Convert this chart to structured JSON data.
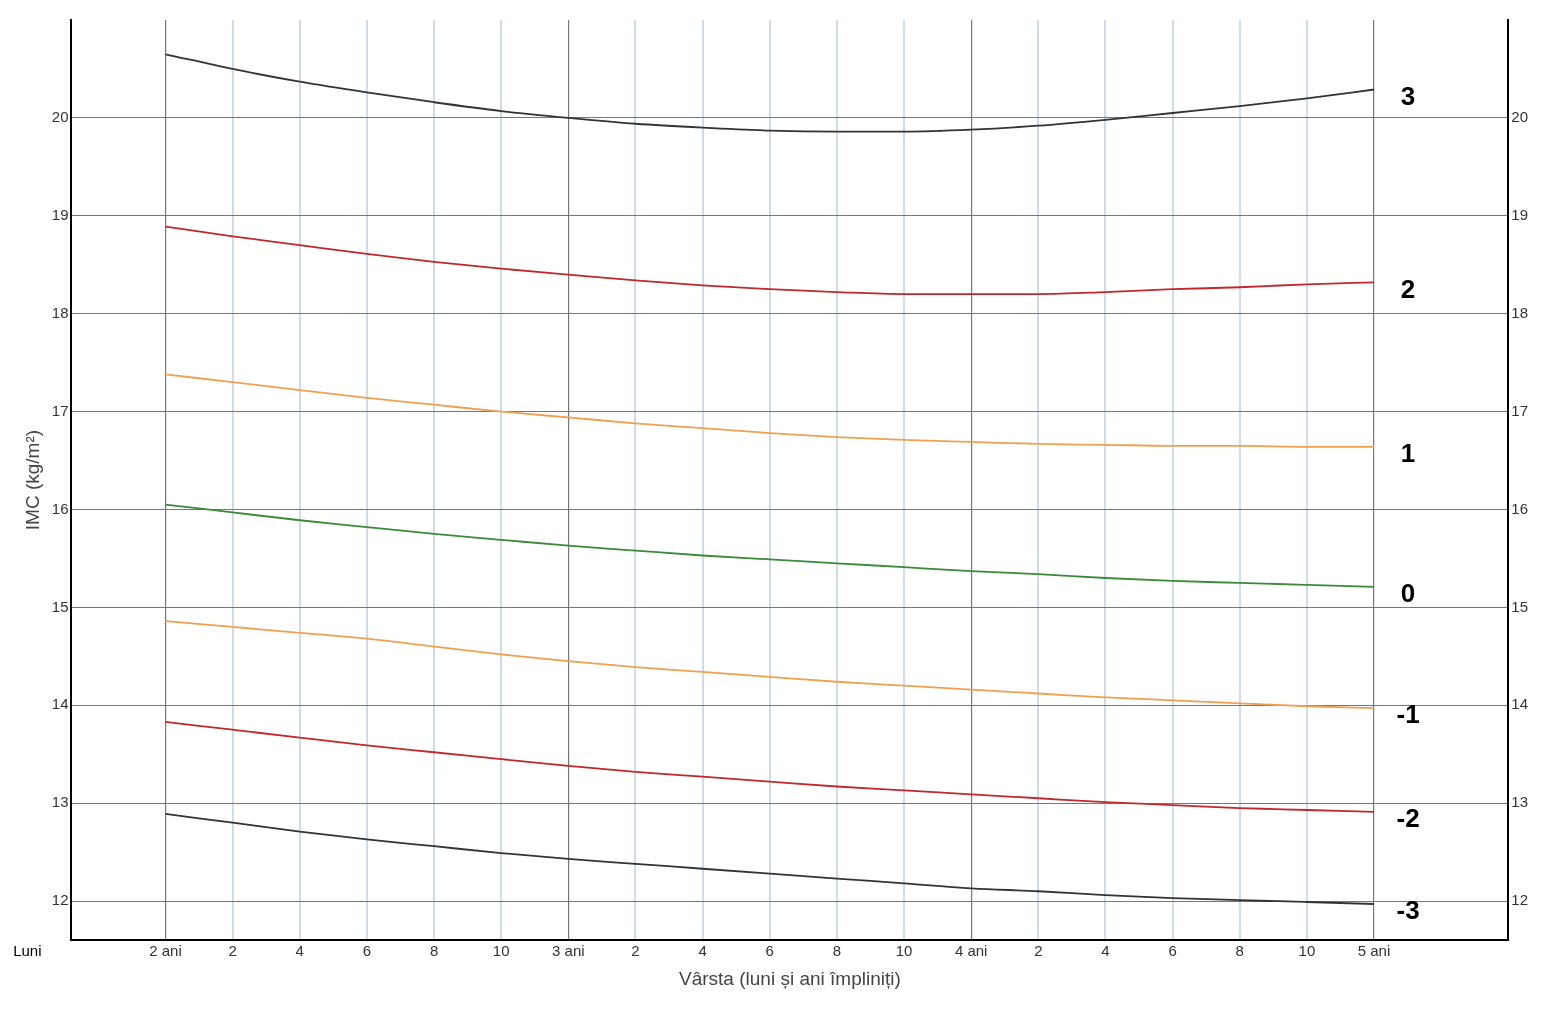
{
  "chart_data": {
    "type": "line",
    "xlabel": "Vârsta (luni și ani împliniți)",
    "ylabel": "IMC (kg/m²)",
    "annotations": [
      "Luni"
    ],
    "categories": [
      "2 ani",
      "2",
      "4",
      "6",
      "8",
      "10",
      "3 ani",
      "2",
      "4",
      "6",
      "8",
      "10",
      "4 ani",
      "2",
      "4",
      "6",
      "8",
      "10",
      "5 ani"
    ],
    "series": [
      {
        "name": "3",
        "color": "#333333",
        "values": [
          20.65,
          20.5,
          20.37,
          20.26,
          20.16,
          20.07,
          20.0,
          19.94,
          19.9,
          19.87,
          19.86,
          19.86,
          19.88,
          19.92,
          19.98,
          20.05,
          20.12,
          20.2,
          20.29
        ]
      },
      {
        "name": "2",
        "color": "#c0282d",
        "values": [
          18.89,
          18.79,
          18.7,
          18.61,
          18.53,
          18.46,
          18.4,
          18.34,
          18.29,
          18.25,
          18.22,
          18.2,
          18.2,
          18.2,
          18.22,
          18.25,
          18.27,
          18.3,
          18.32
        ]
      },
      {
        "name": "1",
        "color": "#f0a050",
        "values": [
          17.38,
          17.3,
          17.22,
          17.14,
          17.07,
          17.0,
          16.94,
          16.88,
          16.83,
          16.78,
          16.74,
          16.71,
          16.69,
          16.67,
          16.66,
          16.65,
          16.65,
          16.64,
          16.64
        ]
      },
      {
        "name": "0",
        "color": "#3a8a3a",
        "values": [
          16.05,
          15.97,
          15.89,
          15.82,
          15.75,
          15.69,
          15.63,
          15.58,
          15.53,
          15.49,
          15.45,
          15.41,
          15.37,
          15.34,
          15.3,
          15.27,
          15.25,
          15.23,
          15.21
        ]
      },
      {
        "name": "-1",
        "color": "#f0a050",
        "values": [
          14.86,
          14.8,
          14.74,
          14.68,
          14.6,
          14.52,
          14.45,
          14.39,
          14.34,
          14.29,
          14.24,
          14.2,
          14.16,
          14.12,
          14.08,
          14.05,
          14.02,
          13.99,
          13.97
        ]
      },
      {
        "name": "-2",
        "color": "#c0282d",
        "values": [
          13.83,
          13.75,
          13.67,
          13.59,
          13.52,
          13.45,
          13.38,
          13.32,
          13.27,
          13.22,
          13.17,
          13.13,
          13.09,
          13.05,
          13.01,
          12.98,
          12.95,
          12.93,
          12.91
        ]
      },
      {
        "name": "-3",
        "color": "#333333",
        "values": [
          12.89,
          12.8,
          12.71,
          12.63,
          12.56,
          12.49,
          12.43,
          12.38,
          12.33,
          12.28,
          12.23,
          12.18,
          12.13,
          12.1,
          12.06,
          12.03,
          12.01,
          11.99,
          11.97
        ]
      }
    ],
    "ylim": [
      11.6,
      21
    ],
    "yticks": [
      12,
      13,
      14,
      15,
      16,
      17,
      18,
      19,
      20
    ],
    "y2lim": [
      11.6,
      21
    ],
    "y2ticks": [
      12,
      13,
      14,
      15,
      16,
      17,
      18,
      19,
      20
    ],
    "grid": true,
    "legend": false,
    "marker": "none",
    "line_style": "solid"
  }
}
